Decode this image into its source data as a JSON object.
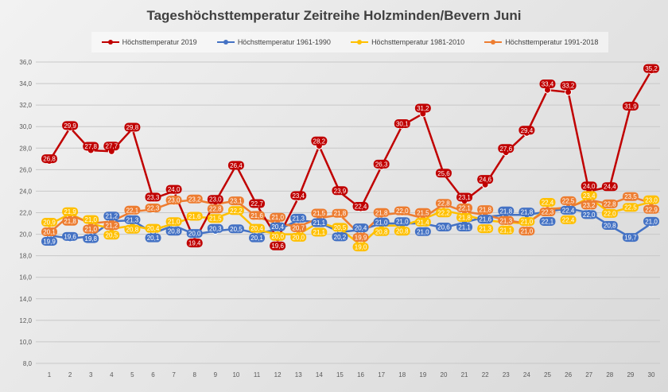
{
  "chart_data": {
    "type": "line",
    "title": "Tageshöchsttemperatur Zeitreihe Holzminden/Bevern Juni",
    "x": [
      1,
      2,
      3,
      4,
      5,
      6,
      7,
      8,
      9,
      10,
      11,
      12,
      13,
      14,
      15,
      16,
      17,
      18,
      19,
      20,
      21,
      22,
      23,
      24,
      25,
      26,
      27,
      28,
      29,
      30
    ],
    "ylim": [
      8,
      36
    ],
    "yticks": [
      "8,0",
      "10,0",
      "12,0",
      "14,0",
      "16,0",
      "18,0",
      "20,0",
      "22,0",
      "24,0",
      "26,0",
      "28,0",
      "30,0",
      "32,0",
      "34,0",
      "36,0"
    ],
    "grid": true,
    "legend": "top",
    "data_labels": true,
    "series": [
      {
        "name": "Höchsttemperatur 2019",
        "color": "#C00000",
        "values": [
          26.8,
          29.9,
          27.8,
          27.7,
          29.8,
          23.3,
          24.0,
          19.4,
          23.0,
          26.4,
          22.7,
          19.6,
          23.4,
          28.2,
          23.9,
          22.4,
          26.3,
          30.1,
          31.2,
          25.6,
          23.1,
          24.6,
          27.6,
          29.4,
          33.4,
          33.2,
          24.0,
          24.4,
          31.9,
          35.2
        ]
      },
      {
        "name": "Höchsttemperatur 1961-1990",
        "color": "#4472C4",
        "values": [
          19.9,
          19.6,
          19.8,
          21.2,
          21.3,
          20.1,
          20.8,
          20.0,
          20.3,
          20.5,
          20.1,
          20.4,
          21.3,
          21.1,
          20.2,
          20.4,
          21.0,
          21.0,
          21.0,
          20.6,
          21.1,
          21.6,
          21.8,
          21.8,
          22.1,
          22.4,
          22.0,
          20.8,
          19.7,
          21.0
        ]
      },
      {
        "name": "Höchsttemperatur 1981-2010",
        "color": "#FFC000",
        "values": [
          20.9,
          21.9,
          21.0,
          20.5,
          20.8,
          20.4,
          21.0,
          21.6,
          21.5,
          22.2,
          20.4,
          20.0,
          20.0,
          21.1,
          20.5,
          19.0,
          20.8,
          20.8,
          21.4,
          22.2,
          21.8,
          21.3,
          21.1,
          21.0,
          22.4,
          22.4,
          23.4,
          22.0,
          22.5,
          23.0
        ]
      },
      {
        "name": "Höchsttemperatur 1991-2018",
        "color": "#ED7D31",
        "values": [
          20.1,
          21.8,
          21.0,
          21.2,
          22.1,
          22.3,
          23.0,
          23.2,
          22.8,
          23.1,
          21.6,
          21.0,
          20.7,
          21.5,
          21.8,
          19.9,
          21.8,
          22.0,
          21.5,
          22.8,
          22.1,
          21.8,
          21.3,
          21.0,
          22.3,
          22.5,
          23.2,
          22.8,
          23.5,
          22.9
        ]
      }
    ]
  }
}
